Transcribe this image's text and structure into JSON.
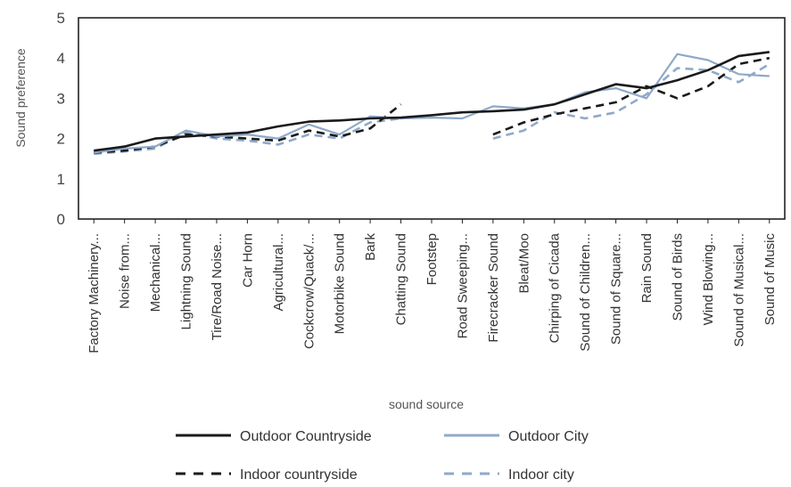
{
  "chart_data": {
    "type": "line",
    "xlabel": "sound source",
    "ylabel": "Sound preference",
    "ylim": [
      0,
      5
    ],
    "yticks": [
      "0",
      "1",
      "2",
      "3",
      "4",
      "5"
    ],
    "grid": false,
    "legend_position": "bottom",
    "categories": [
      "Factory Machinery...",
      "Noise from...",
      "Mechanical...",
      "Lightning Sound",
      "Tire/Road Noise...",
      "Car Horn",
      "Agricultural...",
      "Cockcrow/Quack/...",
      "Motorbike Sound",
      "Bark",
      "Chatting Sound",
      "Footstep",
      "Road Sweeping...",
      "Firecracker Sound",
      "Bleat/Moo",
      "Chirping of Cicada",
      "Sound of Children...",
      "Sound of Square...",
      "Rain Sound",
      "Sound of Birds",
      "Wind Blowing...",
      "Sound of Musical...",
      "Sound of Music"
    ],
    "series": [
      {
        "name": "Outdoor Countryside",
        "color": "#1a1a1a",
        "dash": "solid",
        "values": [
          1.7,
          1.8,
          2.0,
          2.05,
          2.1,
          2.15,
          2.3,
          2.42,
          2.45,
          2.5,
          2.52,
          2.58,
          2.65,
          2.68,
          2.72,
          2.85,
          3.1,
          3.35,
          3.25,
          3.45,
          3.7,
          4.05,
          4.15
        ]
      },
      {
        "name": "Outdoor City",
        "color": "#8fa9c9",
        "dash": "solid",
        "values": [
          1.65,
          1.75,
          1.8,
          2.2,
          2.05,
          2.1,
          2.0,
          2.35,
          2.1,
          2.55,
          2.5,
          2.52,
          2.5,
          2.8,
          2.75,
          2.85,
          3.15,
          3.25,
          3.0,
          4.1,
          3.95,
          3.6,
          3.55
        ]
      },
      {
        "name": "Indoor countryside",
        "color": "#1a1a1a",
        "dash": "dashed",
        "values": [
          1.65,
          1.7,
          1.8,
          2.1,
          2.05,
          2.0,
          1.95,
          2.2,
          2.05,
          2.25,
          2.85,
          null,
          null,
          2.1,
          2.4,
          2.6,
          2.75,
          2.9,
          3.3,
          3.0,
          3.3,
          3.85,
          4.0
        ]
      },
      {
        "name": "Indoor city",
        "color": "#8fa9c9",
        "dash": "dashed",
        "values": [
          1.62,
          1.68,
          1.75,
          2.15,
          2.0,
          1.95,
          1.85,
          2.1,
          2.0,
          2.4,
          2.5,
          null,
          null,
          2.0,
          2.2,
          2.65,
          2.5,
          2.65,
          3.1,
          3.75,
          3.7,
          3.4,
          3.85
        ]
      }
    ]
  }
}
